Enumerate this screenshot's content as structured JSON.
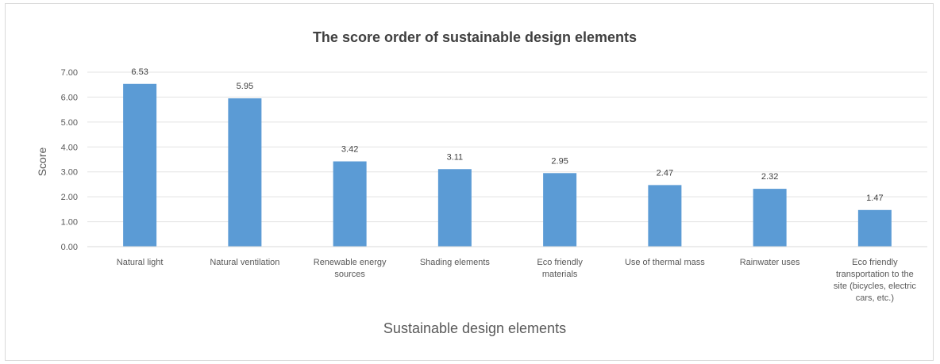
{
  "chart_data": {
    "type": "bar",
    "title": "The score order of sustainable design elements",
    "xlabel": "Sustainable design elements",
    "ylabel": "Score",
    "ylim": [
      0,
      7
    ],
    "y_ticks": [
      "0.00",
      "1.00",
      "2.00",
      "3.00",
      "4.00",
      "5.00",
      "6.00",
      "7.00"
    ],
    "grid": true,
    "legend": "none",
    "bar_color": "#5b9bd5",
    "categories": [
      [
        "Natural light"
      ],
      [
        "Natural ventilation"
      ],
      [
        "Renewable energy",
        "sources"
      ],
      [
        "Shading elements"
      ],
      [
        "Eco friendly",
        "materials"
      ],
      [
        "Use of thermal mass"
      ],
      [
        "Rainwater uses"
      ],
      [
        "Eco friendly",
        "transportation to the",
        "site (bicycles, electric",
        "cars, etc.)"
      ]
    ],
    "values": [
      6.53,
      5.95,
      3.42,
      3.11,
      2.95,
      2.47,
      2.32,
      1.47
    ],
    "data_labels": [
      "6.53",
      "5.95",
      "3.42",
      "3.11",
      "2.95",
      "2.47",
      "2.32",
      "1.47"
    ]
  }
}
